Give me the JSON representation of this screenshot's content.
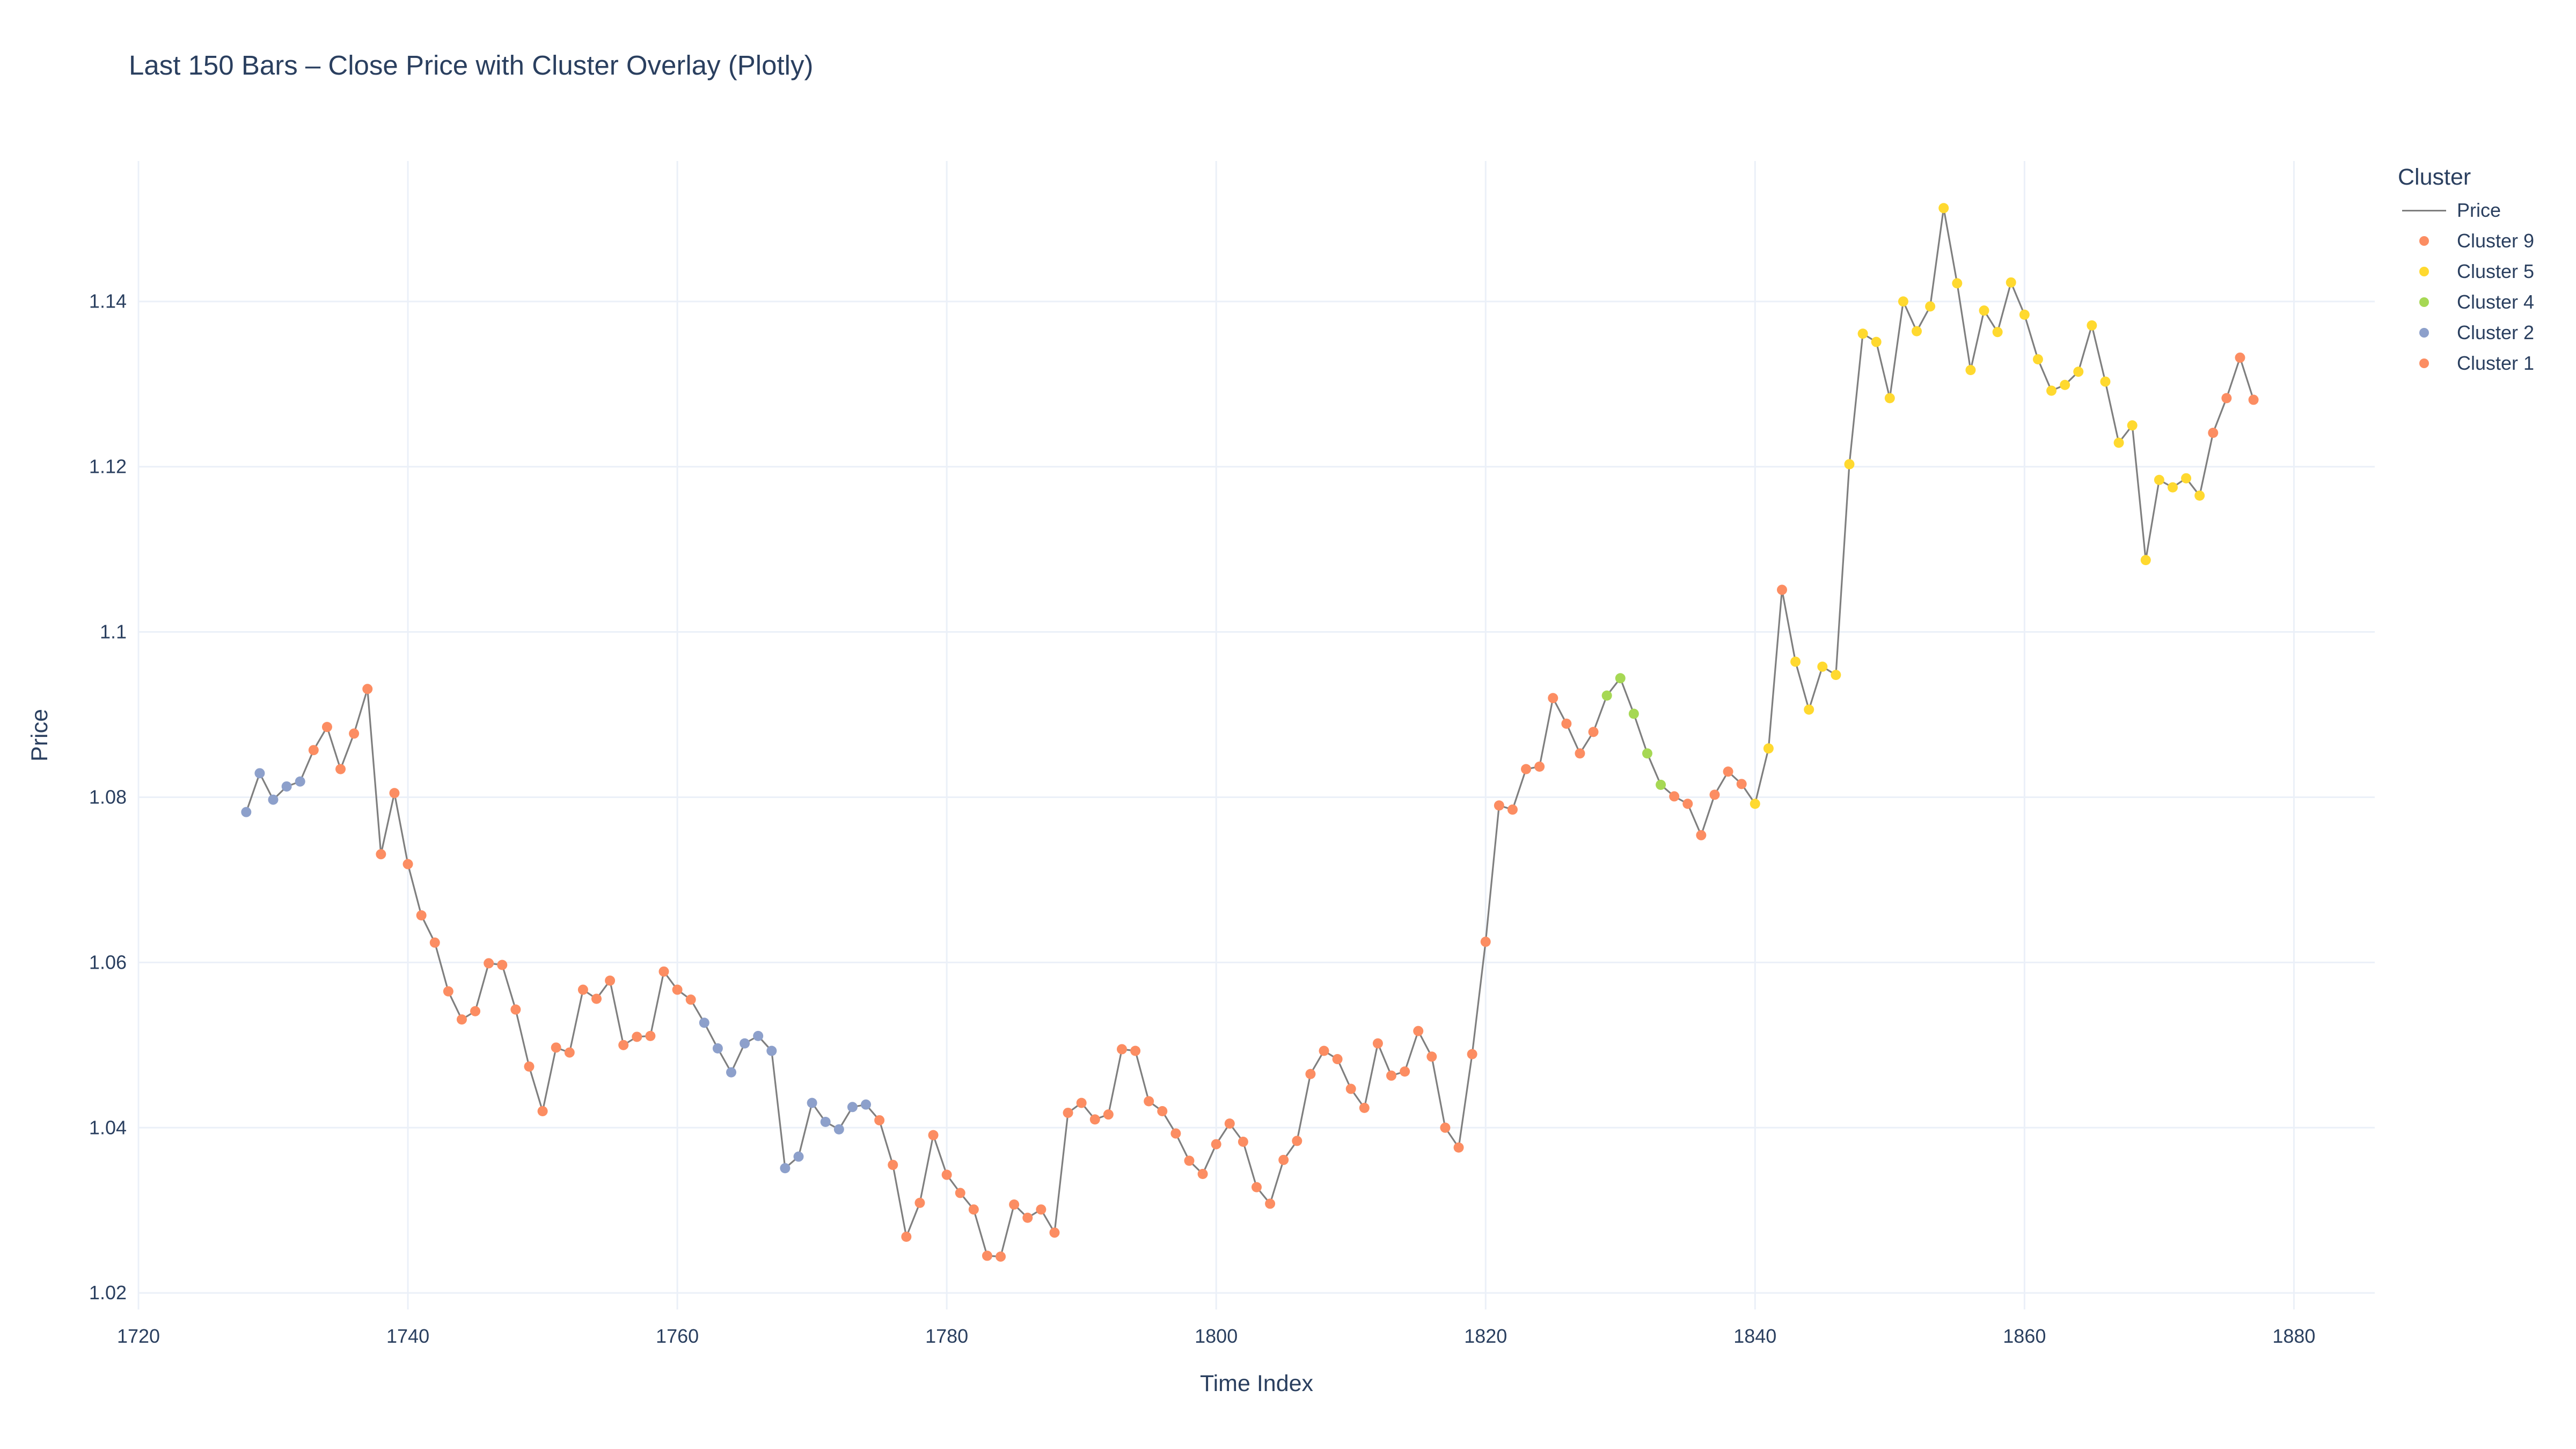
{
  "chart_data": {
    "type": "scatter",
    "title": "Last 150 Bars – Close Price with Cluster Overlay (Plotly)",
    "xlabel": "Time Index",
    "ylabel": "Price",
    "xlim": [
      1720,
      1886
    ],
    "ylim": [
      1.018,
      1.157
    ],
    "x_ticks": [
      1720,
      1740,
      1760,
      1780,
      1800,
      1820,
      1840,
      1860,
      1880
    ],
    "y_ticks": [
      1.02,
      1.04,
      1.06,
      1.08,
      1.1,
      1.12,
      1.14
    ],
    "y_tick_labels": [
      "1.02",
      "1.04",
      "1.06",
      "1.08",
      "1.1",
      "1.12",
      "1.14"
    ],
    "grid": true,
    "legend_title": "Cluster",
    "legend_position": "top-right",
    "line_color": "#7f7f7f",
    "x_start": 1728,
    "price": [
      1.0782,
      1.0829,
      1.0797,
      1.0813,
      1.0819,
      1.0857,
      1.0885,
      1.0834,
      1.0877,
      1.0931,
      1.0731,
      1.0805,
      1.0719,
      1.0657,
      1.0624,
      1.0565,
      1.0531,
      1.0541,
      1.0599,
      1.0597,
      1.0543,
      1.0474,
      1.042,
      1.0497,
      1.0491,
      1.0567,
      1.0556,
      1.0578,
      1.05,
      1.051,
      1.0511,
      1.0589,
      1.0567,
      1.0555,
      1.0527,
      1.0496,
      1.0467,
      1.0502,
      1.0511,
      1.0493,
      1.0351,
      1.0365,
      1.043,
      1.0407,
      1.0398,
      1.0425,
      1.0428,
      1.0409,
      1.0355,
      1.0268,
      1.0309,
      1.0391,
      1.0343,
      1.0321,
      1.0301,
      1.0245,
      1.0244,
      1.0307,
      1.0291,
      1.0301,
      1.0273,
      1.0418,
      1.043,
      1.041,
      1.0416,
      1.0495,
      1.0493,
      1.0432,
      1.042,
      1.0393,
      1.036,
      1.0344,
      1.038,
      1.0405,
      1.0383,
      1.0328,
      1.0308,
      1.0361,
      1.0384,
      1.0465,
      1.0493,
      1.0483,
      1.0447,
      1.0424,
      1.0502,
      1.0463,
      1.0468,
      1.0517,
      1.0486,
      1.04,
      1.0376,
      1.0489,
      1.0625,
      1.079,
      1.0785,
      1.0834,
      1.0837,
      1.092,
      1.0889,
      1.0853,
      1.0879,
      1.0923,
      1.0944,
      1.0901,
      1.0853,
      1.0815,
      1.0801,
      1.0792,
      1.0754,
      1.0803,
      1.0831,
      1.0816,
      1.0792,
      1.0859,
      1.1051,
      1.0964,
      1.0906,
      1.0958,
      1.0948,
      1.1203,
      1.1361,
      1.1351,
      1.1283,
      1.14,
      1.1364,
      1.1394,
      1.1513,
      1.1422,
      1.1317,
      1.1389,
      1.1363,
      1.1423,
      1.1384,
      1.133,
      1.1292,
      1.1299,
      1.1315,
      1.1371,
      1.1303,
      1.1229,
      1.125,
      1.1087,
      1.1184,
      1.1175,
      1.1186,
      1.1165,
      1.1241,
      1.1283,
      1.1332,
      1.1281
    ],
    "cluster": [
      2,
      2,
      2,
      2,
      2,
      9,
      9,
      9,
      9,
      9,
      9,
      9,
      9,
      9,
      9,
      9,
      9,
      9,
      9,
      9,
      9,
      9,
      9,
      9,
      9,
      9,
      9,
      9,
      9,
      9,
      9,
      9,
      9,
      9,
      2,
      2,
      2,
      2,
      2,
      2,
      2,
      2,
      2,
      2,
      2,
      2,
      2,
      9,
      9,
      9,
      9,
      9,
      9,
      9,
      9,
      9,
      9,
      9,
      9,
      9,
      9,
      9,
      9,
      9,
      9,
      9,
      9,
      9,
      9,
      9,
      9,
      9,
      9,
      9,
      9,
      9,
      9,
      9,
      9,
      9,
      9,
      9,
      9,
      9,
      9,
      9,
      9,
      9,
      9,
      9,
      9,
      9,
      9,
      9,
      9,
      9,
      9,
      9,
      9,
      9,
      9,
      4,
      4,
      4,
      4,
      4,
      9,
      9,
      9,
      9,
      9,
      9,
      5,
      5,
      9,
      5,
      5,
      5,
      5,
      5,
      5,
      5,
      5,
      5,
      5,
      5,
      5,
      5,
      5,
      5,
      5,
      5,
      5,
      5,
      5,
      5,
      5,
      5,
      5,
      5,
      5,
      5,
      5,
      5,
      5,
      5,
      9,
      9,
      9,
      9
    ],
    "series": [
      {
        "name": "Price",
        "kind": "line",
        "color": "#7f7f7f"
      },
      {
        "name": "Cluster 9",
        "kind": "markers",
        "cluster_id": 9,
        "color": "#fc8d62"
      },
      {
        "name": "Cluster 5",
        "kind": "markers",
        "cluster_id": 5,
        "color": "#ffd92f"
      },
      {
        "name": "Cluster 4",
        "kind": "markers",
        "cluster_id": 4,
        "color": "#a6d854"
      },
      {
        "name": "Cluster 2",
        "kind": "markers",
        "cluster_id": 2,
        "color": "#8da0cb"
      },
      {
        "name": "Cluster 1",
        "kind": "markers",
        "cluster_id": 1,
        "color": "#fc8d62"
      }
    ]
  }
}
